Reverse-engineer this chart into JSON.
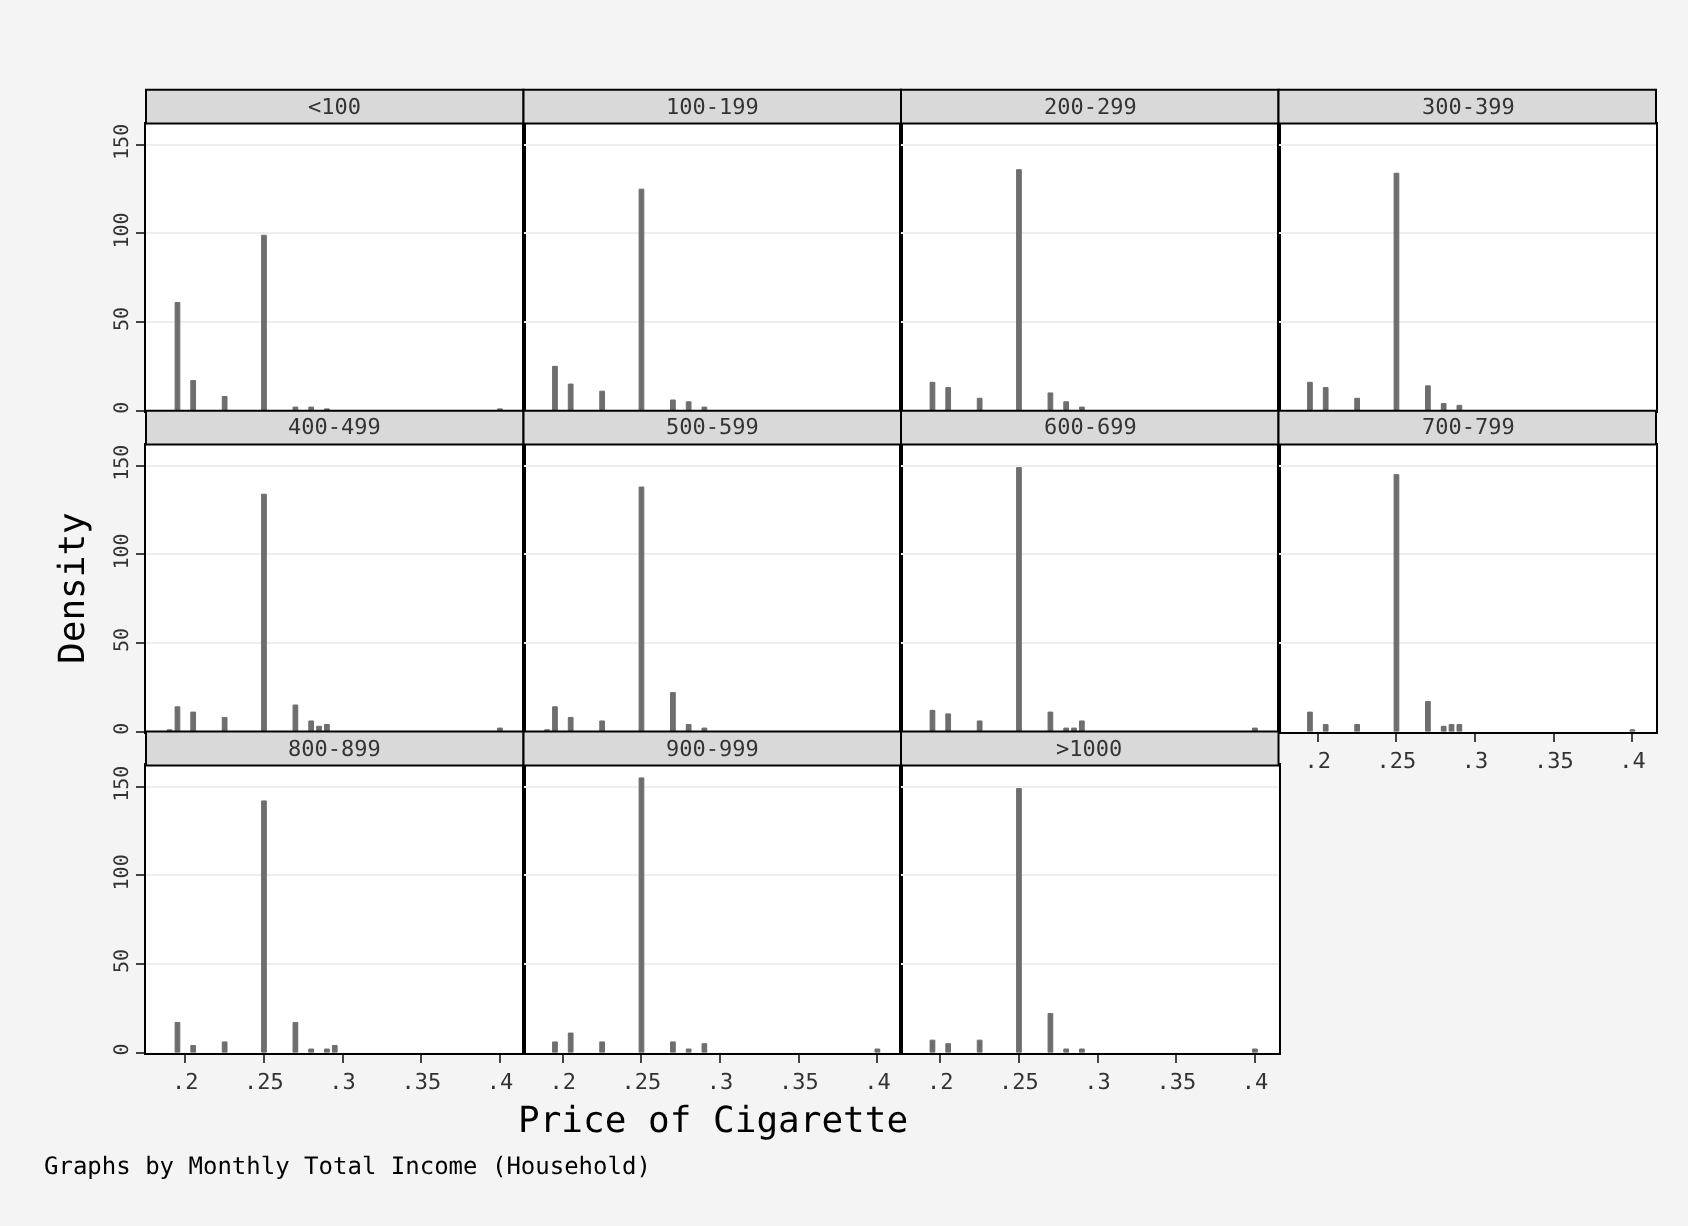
{
  "chart_data": [
    {
      "type": "bar",
      "title": "<100",
      "color": "#6e6e6e",
      "x": [
        0.195,
        0.205,
        0.225,
        0.25,
        0.27,
        0.28,
        0.29,
        0.4
      ],
      "values": [
        61,
        17,
        8,
        99,
        2,
        2,
        1,
        1
      ],
      "xlim": [
        0.175,
        0.415
      ],
      "ylim": [
        0,
        162
      ],
      "yticks": [
        0,
        50,
        100,
        150
      ],
      "grid": "y",
      "tick_labels": "y"
    },
    {
      "type": "bar",
      "title": "100-199",
      "color": "#6e6e6e",
      "x": [
        0.195,
        0.205,
        0.225,
        0.25,
        0.27,
        0.28,
        0.29
      ],
      "values": [
        25,
        15,
        11,
        125,
        6,
        5,
        2
      ],
      "xlim": [
        0.175,
        0.415
      ],
      "ylim": [
        0,
        162
      ],
      "yticks": [
        0,
        50,
        100,
        150
      ],
      "grid": "y",
      "tick_labels": false
    },
    {
      "type": "bar",
      "title": "200-299",
      "color": "#6e6e6e",
      "x": [
        0.195,
        0.205,
        0.225,
        0.25,
        0.27,
        0.28,
        0.29
      ],
      "values": [
        16,
        13,
        7,
        136,
        10,
        5,
        2
      ],
      "xlim": [
        0.175,
        0.415
      ],
      "ylim": [
        0,
        162
      ],
      "yticks": [
        0,
        50,
        100,
        150
      ],
      "grid": "y",
      "tick_labels": false
    },
    {
      "type": "bar",
      "title": "300-399",
      "color": "#6e6e6e",
      "x": [
        0.195,
        0.205,
        0.225,
        0.25,
        0.27,
        0.28,
        0.29
      ],
      "values": [
        16,
        13,
        7,
        134,
        14,
        4,
        3
      ],
      "xlim": [
        0.175,
        0.415
      ],
      "ylim": [
        0,
        162
      ],
      "yticks": [
        0,
        50,
        100,
        150
      ],
      "grid": "y",
      "tick_labels": false
    },
    {
      "type": "bar",
      "title": "400-499",
      "ylabel": "Density",
      "color": "#6e6e6e",
      "x": [
        0.19,
        0.195,
        0.205,
        0.225,
        0.25,
        0.27,
        0.28,
        0.285,
        0.29,
        0.4
      ],
      "values": [
        1,
        14,
        11,
        8,
        134,
        15,
        6,
        3,
        4,
        2
      ],
      "xlim": [
        0.175,
        0.415
      ],
      "ylim": [
        0,
        162
      ],
      "yticks": [
        0,
        50,
        100,
        150
      ],
      "grid": "y",
      "tick_labels": "y"
    },
    {
      "type": "bar",
      "title": "500-599",
      "color": "#6e6e6e",
      "x": [
        0.19,
        0.195,
        0.205,
        0.225,
        0.25,
        0.27,
        0.28,
        0.29
      ],
      "values": [
        1,
        14,
        8,
        6,
        138,
        22,
        4,
        2
      ],
      "xlim": [
        0.175,
        0.415
      ],
      "ylim": [
        0,
        162
      ],
      "yticks": [
        0,
        50,
        100,
        150
      ],
      "grid": "y",
      "tick_labels": false
    },
    {
      "type": "bar",
      "title": "600-699",
      "color": "#6e6e6e",
      "x": [
        0.195,
        0.205,
        0.225,
        0.25,
        0.27,
        0.28,
        0.285,
        0.29,
        0.4
      ],
      "values": [
        12,
        10,
        6,
        149,
        11,
        2,
        2,
        6,
        2
      ],
      "xlim": [
        0.175,
        0.415
      ],
      "ylim": [
        0,
        162
      ],
      "yticks": [
        0,
        50,
        100,
        150
      ],
      "grid": "y",
      "tick_labels": false
    },
    {
      "type": "bar",
      "title": "700-799",
      "color": "#6e6e6e",
      "x": [
        0.195,
        0.205,
        0.225,
        0.25,
        0.27,
        0.28,
        0.285,
        0.29,
        0.4
      ],
      "values": [
        11,
        4,
        4,
        145,
        17,
        3,
        4,
        4,
        1
      ],
      "xlim": [
        0.175,
        0.415
      ],
      "ylim": [
        0,
        162
      ],
      "xticks": [
        {
          "value": 0.2,
          "label": ".2"
        },
        {
          "value": 0.25,
          "label": ".25"
        },
        {
          "value": 0.3,
          "label": ".3"
        },
        {
          "value": 0.35,
          "label": ".35"
        },
        {
          "value": 0.4,
          "label": ".4"
        }
      ],
      "yticks": [
        0,
        50,
        100,
        150
      ],
      "grid": "y",
      "tick_labels": "x"
    },
    {
      "type": "bar",
      "title": "800-899",
      "annotations": [
        "Graphs by Monthly Total Income (Household)"
      ],
      "color": "#6e6e6e",
      "x": [
        0.195,
        0.205,
        0.225,
        0.25,
        0.27,
        0.28,
        0.29,
        0.295
      ],
      "values": [
        17,
        4,
        6,
        142,
        17,
        2,
        2,
        4
      ],
      "xlim": [
        0.175,
        0.415
      ],
      "ylim": [
        0,
        162
      ],
      "xticks": [
        {
          "value": 0.2,
          "label": ".2"
        },
        {
          "value": 0.25,
          "label": ".25"
        },
        {
          "value": 0.3,
          "label": ".3"
        },
        {
          "value": 0.35,
          "label": ".35"
        },
        {
          "value": 0.4,
          "label": ".4"
        }
      ],
      "yticks": [
        0,
        50,
        100,
        150
      ],
      "grid": "y"
    },
    {
      "type": "bar",
      "title": "900-999",
      "xlabel": "Price of Cigarette",
      "color": "#6e6e6e",
      "x": [
        0.195,
        0.205,
        0.225,
        0.25,
        0.27,
        0.28,
        0.29,
        0.4
      ],
      "values": [
        6,
        11,
        6,
        155,
        6,
        2,
        5,
        2
      ],
      "xlim": [
        0.175,
        0.415
      ],
      "ylim": [
        0,
        162
      ],
      "xticks": [
        {
          "value": 0.2,
          "label": ".2"
        },
        {
          "value": 0.25,
          "label": ".25"
        },
        {
          "value": 0.3,
          "label": ".3"
        },
        {
          "value": 0.35,
          "label": ".35"
        },
        {
          "value": 0.4,
          "label": ".4"
        }
      ],
      "yticks": [
        0,
        50,
        100,
        150
      ],
      "grid": "y",
      "tick_labels": "x"
    },
    {
      "type": "bar",
      "title": ">1000",
      "color": "#6e6e6e",
      "x": [
        0.195,
        0.205,
        0.225,
        0.25,
        0.27,
        0.28,
        0.29,
        0.4
      ],
      "values": [
        7,
        5,
        7,
        149,
        22,
        2,
        2,
        2
      ],
      "xlim": [
        0.175,
        0.415
      ],
      "ylim": [
        0,
        162
      ],
      "xticks": [
        {
          "value": 0.2,
          "label": ".2"
        },
        {
          "value": 0.25,
          "label": ".25"
        },
        {
          "value": 0.3,
          "label": ".3"
        },
        {
          "value": 0.35,
          "label": ".35"
        },
        {
          "value": 0.4,
          "label": ".4"
        }
      ],
      "yticks": [
        0,
        50,
        100,
        150
      ],
      "grid": "y",
      "tick_labels": "x"
    }
  ]
}
